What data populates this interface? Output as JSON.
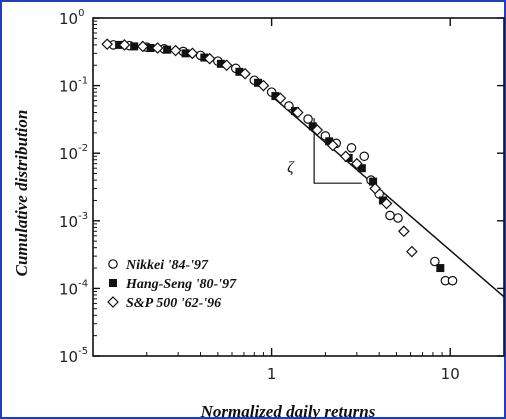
{
  "chart_data": {
    "type": "scatter",
    "title": "",
    "xlabel": "Normalized daily returns",
    "ylabel": "Cumulative distribution",
    "x_scale": "log",
    "y_scale": "log",
    "xlim": [
      0.1,
      20
    ],
    "ylim": [
      1e-05,
      1
    ],
    "x_ticks": [
      {
        "value": 1,
        "label": "1"
      },
      {
        "value": 10,
        "label": "10"
      }
    ],
    "y_ticks": [
      {
        "value": 1,
        "label": "10",
        "exp": "0"
      },
      {
        "value": 0.1,
        "label": "10",
        "exp": "-1"
      },
      {
        "value": 0.01,
        "label": "10",
        "exp": "-2"
      },
      {
        "value": 0.001,
        "label": "10",
        "exp": "-3"
      },
      {
        "value": 0.0001,
        "label": "10",
        "exp": "-4"
      },
      {
        "value": 1e-05,
        "label": "10",
        "exp": "-5"
      }
    ],
    "legend_position": "bottom-left",
    "series": [
      {
        "name": "Nikkei '84-'97",
        "marker": "open-circle",
        "points": [
          [
            0.13,
            0.4
          ],
          [
            0.16,
            0.39
          ],
          [
            0.2,
            0.37
          ],
          [
            0.25,
            0.35
          ],
          [
            0.32,
            0.32
          ],
          [
            0.4,
            0.28
          ],
          [
            0.5,
            0.23
          ],
          [
            0.63,
            0.18
          ],
          [
            0.8,
            0.12
          ],
          [
            1.0,
            0.08
          ],
          [
            1.25,
            0.05
          ],
          [
            1.6,
            0.032
          ],
          [
            2.0,
            0.018
          ],
          [
            2.3,
            0.014
          ],
          [
            2.8,
            0.012
          ],
          [
            3.3,
            0.009
          ],
          [
            3.6,
            0.004
          ],
          [
            4.0,
            0.0025
          ],
          [
            4.6,
            0.0012
          ],
          [
            5.1,
            0.0011
          ],
          [
            8.2,
            0.00025
          ],
          [
            9.4,
            0.00013
          ],
          [
            10.3,
            0.00013
          ]
        ]
      },
      {
        "name": "Hang-Seng '80-'97",
        "marker": "filled-square",
        "points": [
          [
            0.14,
            0.4
          ],
          [
            0.17,
            0.38
          ],
          [
            0.21,
            0.36
          ],
          [
            0.26,
            0.34
          ],
          [
            0.33,
            0.3
          ],
          [
            0.42,
            0.26
          ],
          [
            0.52,
            0.21
          ],
          [
            0.66,
            0.16
          ],
          [
            0.84,
            0.11
          ],
          [
            1.05,
            0.07
          ],
          [
            1.35,
            0.042
          ],
          [
            1.7,
            0.025
          ],
          [
            2.1,
            0.015
          ],
          [
            2.7,
            0.0085
          ],
          [
            3.2,
            0.006
          ],
          [
            3.7,
            0.0038
          ],
          [
            4.2,
            0.002
          ],
          [
            8.8,
            0.0002
          ]
        ]
      },
      {
        "name": "S&P 500 '62-'96",
        "marker": "open-diamond",
        "points": [
          [
            0.12,
            0.41
          ],
          [
            0.15,
            0.4
          ],
          [
            0.19,
            0.38
          ],
          [
            0.23,
            0.36
          ],
          [
            0.29,
            0.33
          ],
          [
            0.36,
            0.3
          ],
          [
            0.45,
            0.25
          ],
          [
            0.56,
            0.2
          ],
          [
            0.71,
            0.15
          ],
          [
            0.9,
            0.1
          ],
          [
            1.12,
            0.065
          ],
          [
            1.4,
            0.04
          ],
          [
            1.8,
            0.022
          ],
          [
            2.2,
            0.013
          ],
          [
            2.6,
            0.009
          ],
          [
            3.0,
            0.007
          ],
          [
            3.8,
            0.003
          ],
          [
            4.4,
            0.0018
          ],
          [
            5.5,
            0.0007
          ],
          [
            6.1,
            0.00035
          ]
        ]
      }
    ],
    "fit_line": {
      "points": [
        [
          1.0,
          0.07
        ],
        [
          20,
          7.5e-05
        ]
      ]
    },
    "annotation": {
      "label": "ζ",
      "triangle": {
        "x_left": 1.73,
        "x_right": 3.2,
        "y_top": 0.033,
        "y_bottom": 0.0036
      }
    }
  }
}
